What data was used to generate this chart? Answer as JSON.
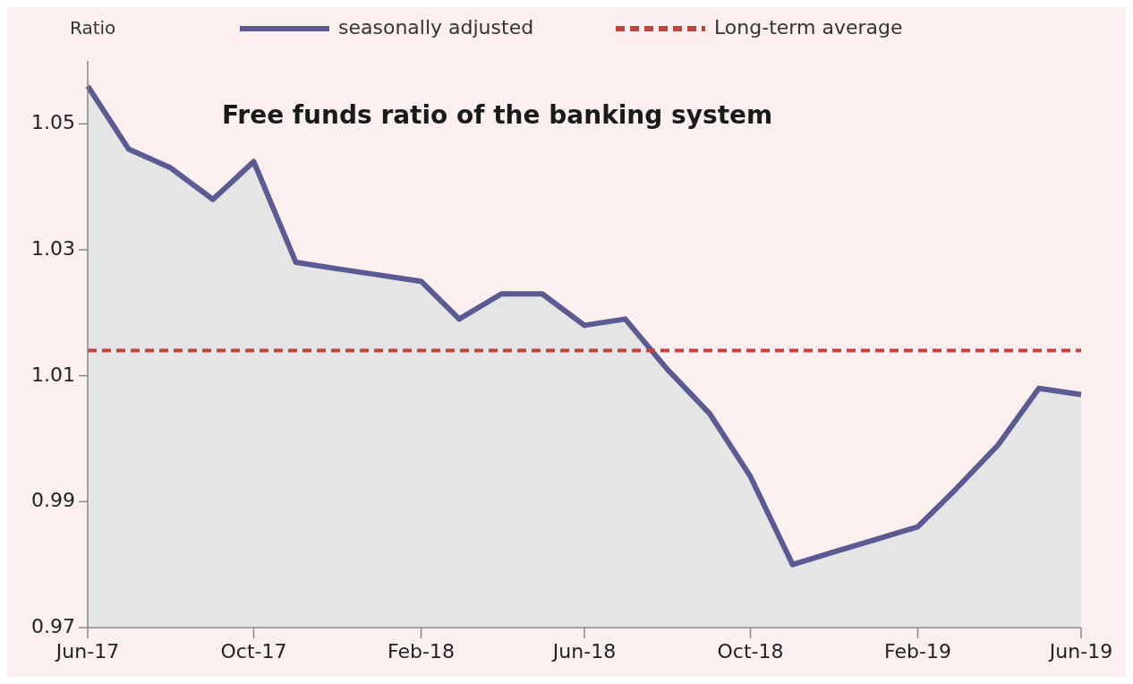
{
  "chart_data": {
    "type": "area",
    "title": "Free funds ratio of the banking system",
    "ylabel": "Ratio",
    "x": [
      "2017-06",
      "2017-07",
      "2017-08",
      "2017-09",
      "2017-10",
      "2017-11",
      "2017-12",
      "2018-01",
      "2018-02",
      "2018-03",
      "2018-04",
      "2018-05",
      "2018-06",
      "2018-07",
      "2018-08",
      "2018-09",
      "2018-10",
      "2018-11",
      "2018-12",
      "2019-01",
      "2019-02",
      "2019-03",
      "2019-04",
      "2019-05",
      "2019-06"
    ],
    "series": [
      {
        "name": "seasonally adjusted",
        "color": "#5b5a92",
        "values": [
          1.056,
          1.046,
          1.043,
          1.038,
          1.044,
          1.028,
          1.027,
          1.026,
          1.025,
          1.019,
          1.023,
          1.023,
          1.018,
          1.019,
          1.011,
          1.004,
          0.994,
          0.98,
          0.982,
          0.984,
          0.986,
          0.992,
          0.999,
          1.008,
          1.007
        ]
      }
    ],
    "ref_lines": [
      {
        "axis": "y",
        "value": 1.014,
        "label": "Long-term average",
        "color": "#c0433f",
        "line_style": "dashed"
      }
    ],
    "xlim": [
      "2017-06",
      "2019-06"
    ],
    "xticks": [
      {
        "value": "2017-06",
        "label": "Jun-17"
      },
      {
        "value": "2017-10",
        "label": "Oct-17"
      },
      {
        "value": "2018-02",
        "label": "Feb-18"
      },
      {
        "value": "2018-06",
        "label": "Jun-18"
      },
      {
        "value": "2018-10",
        "label": "Oct-18"
      },
      {
        "value": "2019-02",
        "label": "Feb-19"
      },
      {
        "value": "2019-06",
        "label": "Jun-19"
      }
    ],
    "ylim": [
      0.97,
      1.06
    ],
    "yticks": [
      0.97,
      0.99,
      1.01,
      1.03,
      1.05
    ],
    "grid": false,
    "legend": "top"
  }
}
